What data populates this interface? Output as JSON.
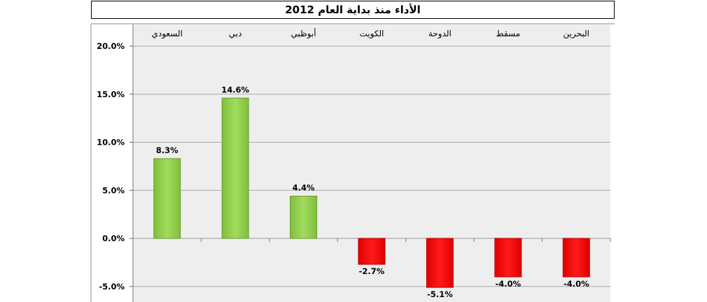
{
  "chart_data": {
    "type": "bar",
    "title": "الأداء منذ بداية العام 2012",
    "categories": [
      "السعودي",
      "دبي",
      "أبوظبي",
      "الكويت",
      "الدوحة",
      "مسقط",
      "البحرين"
    ],
    "values": [
      8.3,
      14.6,
      4.4,
      -2.7,
      -5.1,
      -4.0,
      -4.0
    ],
    "value_labels": [
      "8.3%",
      "14.6%",
      "4.4%",
      "-2.7%",
      "-5.1%",
      "-4.0%",
      "-4.0%"
    ],
    "y_ticks": [
      "20.0%",
      "15.0%",
      "10.0%",
      "5.0%",
      "0.0%",
      "-5.0%"
    ],
    "y_tick_values": [
      20,
      15,
      10,
      5,
      0,
      -5
    ],
    "ylim": [
      -6,
      20
    ],
    "grid": true,
    "legend": "none",
    "colors": {
      "positive": "#92d050",
      "negative": "#ff0000",
      "plot_bg": "#eeeeee",
      "grid": "#aaaaaa"
    }
  }
}
